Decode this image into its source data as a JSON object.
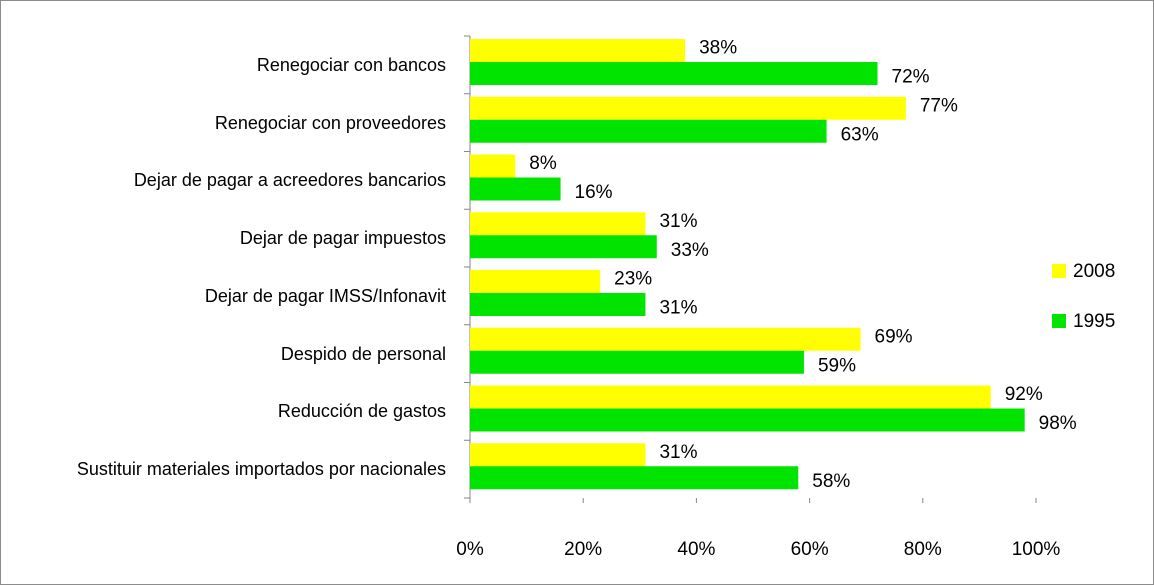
{
  "chart_data": {
    "type": "hbar",
    "categories": [
      "Renegociar con bancos",
      "Renegociar con proveedores",
      "Dejar de pagar a acreedores bancarios",
      "Dejar de pagar impuestos",
      "Dejar de pagar IMSS/Infonavit",
      "Despido de personal",
      "Reducción de gastos",
      "Sustituir materiales importados por nacionales"
    ],
    "series": [
      {
        "name": "2008",
        "color": "#ffff00",
        "values": [
          38,
          77,
          8,
          31,
          23,
          69,
          92,
          31
        ],
        "value_labels": [
          "38%",
          "77%",
          "8%",
          "31%",
          "23%",
          "69%",
          "92%",
          "31%"
        ]
      },
      {
        "name": "1995",
        "color": "#00e400",
        "values": [
          72,
          63,
          16,
          33,
          31,
          59,
          98,
          58
        ],
        "value_labels": [
          "72%",
          "63%",
          "16%",
          "33%",
          "31%",
          "59%",
          "98%",
          "58%"
        ]
      }
    ],
    "xlim": [
      0,
      100
    ],
    "xticks": [
      {
        "value": 0,
        "label": "0%"
      },
      {
        "value": 20,
        "label": "20%"
      },
      {
        "value": 40,
        "label": "40%"
      },
      {
        "value": 60,
        "label": "60%"
      },
      {
        "value": 80,
        "label": "80%"
      },
      {
        "value": 100,
        "label": "100%"
      }
    ],
    "legend": "right"
  }
}
